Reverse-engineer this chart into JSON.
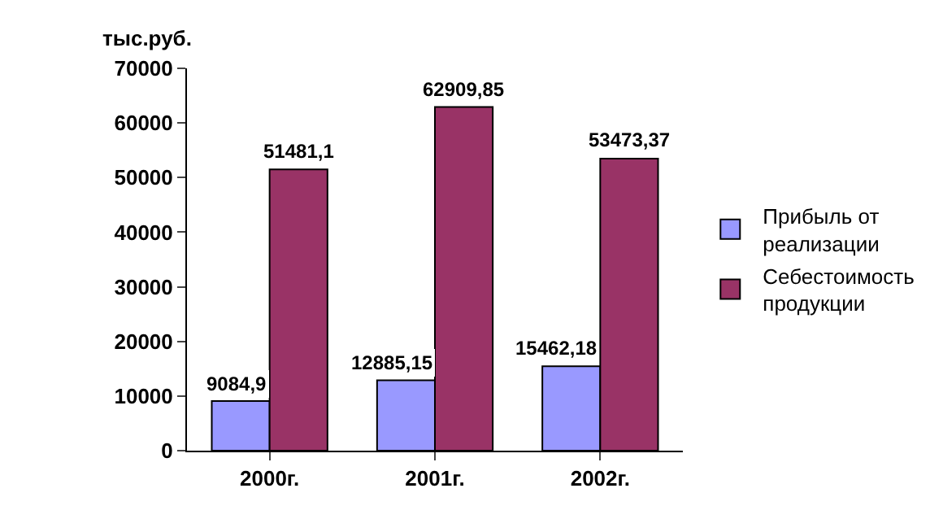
{
  "chart_data": {
    "type": "bar",
    "ylabel": "тыс.руб.",
    "categories": [
      "2000г.",
      "2001г.",
      "2002г."
    ],
    "series": [
      {
        "name": "Прибыль от реализации",
        "color": "#9999ff",
        "values": [
          9084.9,
          12885.15,
          15462.18
        ],
        "value_labels": [
          "9084,9",
          "12885,15",
          "15462,18"
        ]
      },
      {
        "name": "Себестоимость продукции",
        "color": "#993366",
        "values": [
          51481.1,
          62909.85,
          53473.37
        ],
        "value_labels": [
          "51481,1",
          "62909,85",
          "53473,37"
        ]
      }
    ],
    "ylim": [
      0,
      70000
    ],
    "yticks": [
      0,
      10000,
      20000,
      30000,
      40000,
      50000,
      60000,
      70000
    ],
    "grid": false,
    "legend": "right"
  }
}
